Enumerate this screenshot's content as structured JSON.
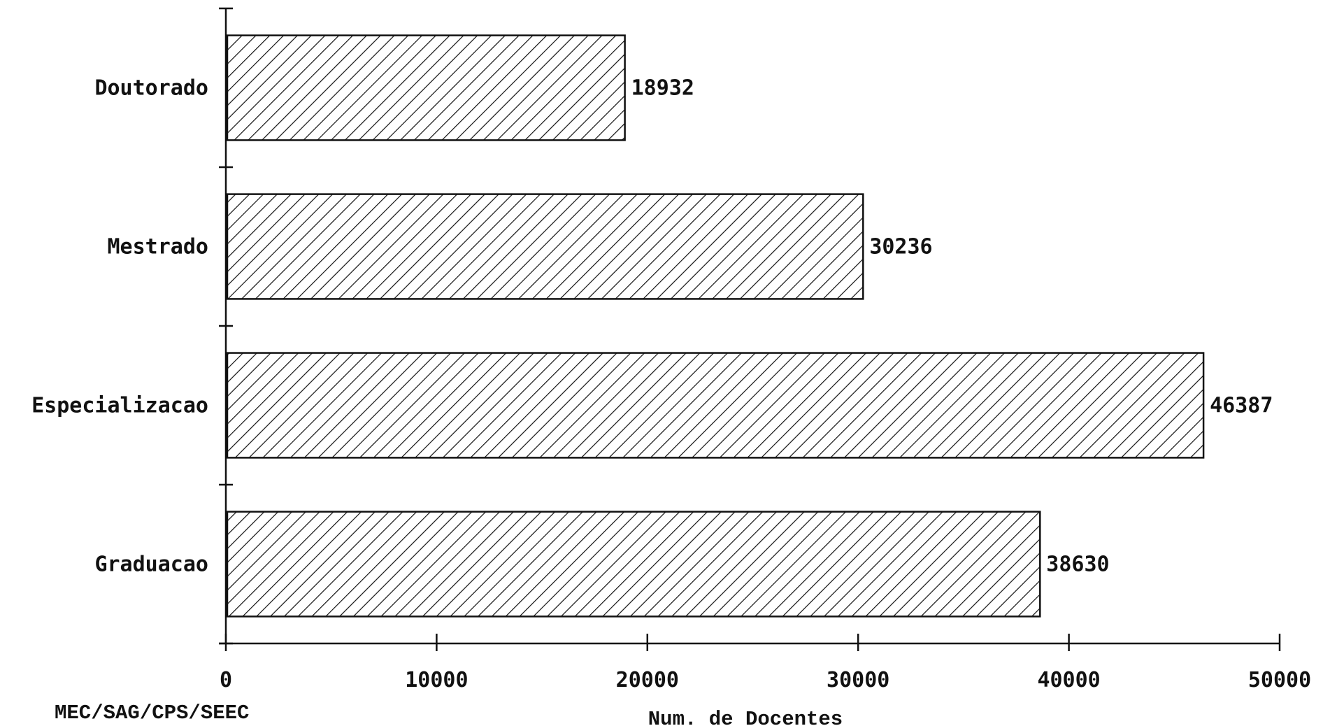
{
  "chart_data": {
    "type": "bar",
    "orientation": "horizontal",
    "categories": [
      "Doutorado",
      "Mestrado",
      "Especializacao",
      "Graduacao"
    ],
    "values": [
      18932,
      30236,
      46387,
      38630
    ],
    "xlabel": "Num. de Docentes",
    "ylabel": "",
    "xlim": [
      0,
      50000
    ],
    "xticks": [
      0,
      10000,
      20000,
      30000,
      40000,
      50000
    ],
    "xtick_labels": [
      "0",
      "10000",
      "20000",
      "30000",
      "40000",
      "50000"
    ],
    "value_labels": [
      "18932",
      "30236",
      "46387",
      "38630"
    ],
    "grid": false,
    "bar_fill": "diagonal-hatch",
    "colors": {
      "ink": "#111111",
      "background": "#ffffff"
    }
  },
  "source_note": "MEC/SAG/CPS/SEEC"
}
